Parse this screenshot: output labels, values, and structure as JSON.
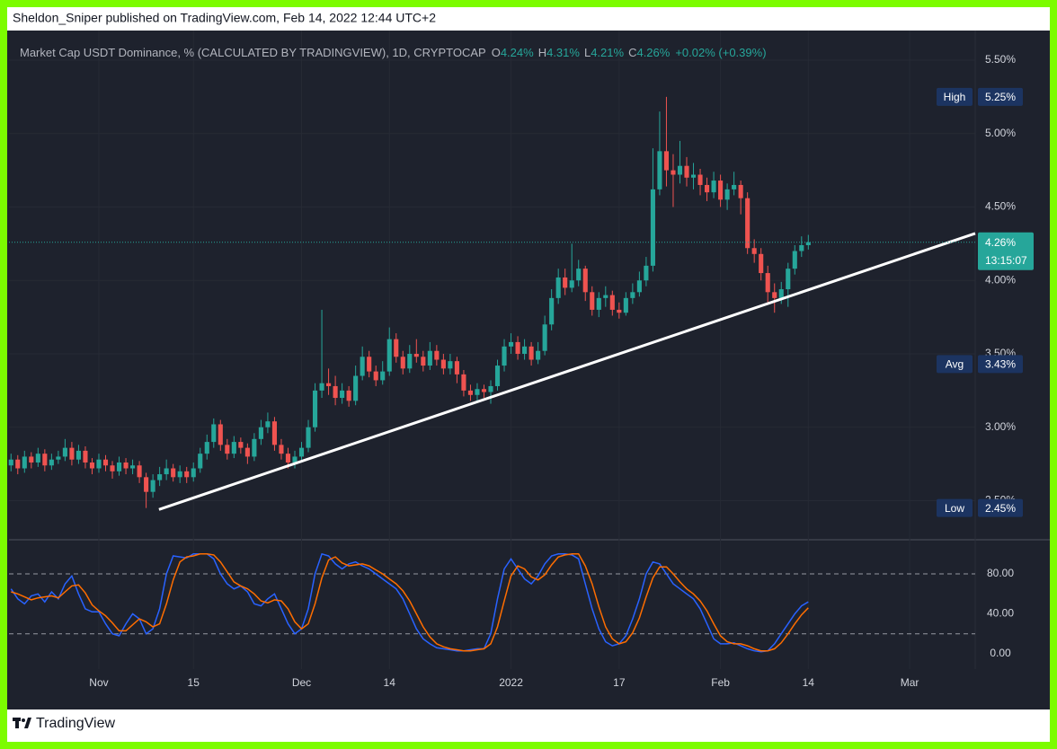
{
  "header": {
    "publisher_line": "Sheldon_Sniper published on TradingView.com, Feb 14, 2022 12:44 UTC+2"
  },
  "footer": {
    "brand": "TradingView"
  },
  "chart_data": [
    {
      "type": "candlestick",
      "title": "Market Cap USDT Dominance, % (CALCULATED BY TRADINGVIEW), 1D, CRYPTOCAP",
      "legend_ohlc": [
        {
          "key": "O",
          "value": "4.24%"
        },
        {
          "key": "H",
          "value": "4.31%"
        },
        {
          "key": "L",
          "value": "4.21%"
        },
        {
          "key": "C",
          "value": "4.26%"
        }
      ],
      "change_label": "+0.02% (+0.39%)",
      "up_color": "#26a69a",
      "down_color": "#ef5350",
      "grid": true,
      "xlim": [
        -13.3,
        129.7
      ],
      "ylim": [
        2.24,
        5.665
      ],
      "yticks": [
        {
          "value": 5.5,
          "label": "5.50%"
        },
        {
          "value": 5.0,
          "label": "5.00%"
        },
        {
          "value": 4.5,
          "label": "4.50%"
        },
        {
          "value": 4.0,
          "label": "4.00%"
        },
        {
          "value": 3.5,
          "label": "3.50%"
        },
        {
          "value": 3.0,
          "label": "3.00%"
        },
        {
          "value": 2.5,
          "label": "2.50%"
        }
      ],
      "x": [
        -13,
        -12,
        -11,
        -10,
        -9,
        -8,
        -7,
        -6,
        -5,
        -4,
        -3,
        -2,
        -1,
        0,
        1,
        2,
        3,
        4,
        5,
        6,
        7,
        8,
        9,
        10,
        11,
        12,
        13,
        14,
        15,
        16,
        17,
        18,
        19,
        20,
        21,
        22,
        23,
        24,
        25,
        26,
        27,
        28,
        29,
        30,
        31,
        32,
        33,
        34,
        35,
        36,
        37,
        38,
        39,
        40,
        41,
        42,
        43,
        44,
        45,
        46,
        47,
        48,
        49,
        50,
        51,
        52,
        53,
        54,
        55,
        56,
        57,
        58,
        59,
        60,
        61,
        62,
        63,
        64,
        65,
        66,
        67,
        68,
        69,
        70,
        71,
        72,
        73,
        74,
        75,
        76,
        77,
        78,
        79,
        80,
        81,
        82,
        83,
        84,
        85,
        86,
        87,
        88,
        89,
        90,
        91,
        92,
        93,
        94,
        95,
        96,
        97,
        98,
        99,
        100,
        101,
        102,
        103,
        104,
        105
      ],
      "open": [
        2.74,
        2.78,
        2.72,
        2.8,
        2.76,
        2.82,
        2.74,
        2.78,
        2.8,
        2.86,
        2.78,
        2.84,
        2.76,
        2.72,
        2.78,
        2.74,
        2.7,
        2.76,
        2.72,
        2.74,
        2.66,
        2.56,
        2.64,
        2.68,
        2.72,
        2.66,
        2.7,
        2.66,
        2.72,
        2.82,
        2.9,
        3.02,
        2.88,
        2.82,
        2.9,
        2.86,
        2.8,
        2.92,
        3.0,
        3.04,
        2.88,
        2.82,
        2.76,
        2.8,
        2.86,
        3.0,
        3.25,
        3.3,
        3.28,
        3.2,
        3.25,
        3.18,
        3.35,
        3.48,
        3.38,
        3.32,
        3.38,
        3.6,
        3.48,
        3.4,
        3.5,
        3.48,
        3.42,
        3.52,
        3.46,
        3.4,
        3.45,
        3.36,
        3.25,
        3.22,
        3.26,
        3.24,
        3.28,
        3.42,
        3.55,
        3.58,
        3.5,
        3.55,
        3.46,
        3.52,
        3.7,
        3.88,
        4.02,
        3.95,
        4.0,
        4.08,
        3.92,
        3.8,
        3.88,
        3.9,
        3.8,
        3.78,
        3.88,
        3.92,
        4.0,
        4.1,
        4.62,
        4.88,
        4.75,
        4.72,
        4.78,
        4.7,
        4.72,
        4.65,
        4.6,
        4.68,
        4.55,
        4.62,
        4.65,
        4.56,
        4.22,
        4.18,
        4.05,
        3.92,
        3.88,
        3.94,
        4.08,
        4.2,
        4.24
      ],
      "high": [
        2.82,
        2.81,
        2.84,
        2.83,
        2.86,
        2.85,
        2.82,
        2.84,
        2.92,
        2.9,
        2.88,
        2.87,
        2.79,
        2.82,
        2.81,
        2.77,
        2.8,
        2.79,
        2.78,
        2.77,
        2.69,
        2.68,
        2.73,
        2.78,
        2.75,
        2.74,
        2.73,
        2.76,
        2.86,
        2.95,
        3.06,
        3.05,
        2.92,
        2.94,
        2.93,
        2.89,
        2.96,
        3.05,
        3.1,
        3.07,
        2.92,
        2.86,
        2.84,
        2.9,
        3.05,
        3.3,
        3.8,
        3.4,
        3.35,
        3.3,
        3.28,
        3.42,
        3.55,
        3.52,
        3.42,
        3.45,
        3.68,
        3.64,
        3.52,
        3.56,
        3.6,
        3.52,
        3.58,
        3.56,
        3.5,
        3.5,
        3.48,
        3.39,
        3.29,
        3.3,
        3.29,
        3.32,
        3.46,
        3.6,
        3.64,
        3.62,
        3.6,
        3.58,
        3.58,
        3.76,
        3.94,
        4.08,
        4.08,
        4.25,
        4.14,
        4.1,
        3.96,
        3.92,
        3.96,
        3.93,
        3.85,
        3.92,
        3.98,
        4.06,
        4.16,
        4.9,
        5.15,
        5.25,
        4.86,
        4.95,
        4.84,
        4.8,
        4.76,
        4.7,
        4.74,
        4.72,
        4.66,
        4.74,
        4.68,
        4.6,
        4.28,
        4.22,
        4.1,
        3.98,
        3.99,
        4.12,
        4.24,
        4.3,
        4.31
      ],
      "low": [
        2.7,
        2.68,
        2.69,
        2.72,
        2.73,
        2.7,
        2.71,
        2.75,
        2.77,
        2.74,
        2.75,
        2.72,
        2.68,
        2.69,
        2.7,
        2.65,
        2.67,
        2.68,
        2.68,
        2.62,
        2.45,
        2.52,
        2.6,
        2.64,
        2.63,
        2.62,
        2.62,
        2.63,
        2.69,
        2.78,
        2.86,
        2.84,
        2.78,
        2.79,
        2.82,
        2.75,
        2.77,
        2.88,
        2.96,
        2.84,
        2.78,
        2.72,
        2.72,
        2.77,
        2.83,
        2.97,
        3.2,
        3.22,
        3.15,
        3.16,
        3.14,
        3.15,
        3.32,
        3.34,
        3.28,
        3.29,
        3.35,
        3.44,
        3.36,
        3.37,
        3.44,
        3.38,
        3.39,
        3.42,
        3.36,
        3.36,
        3.3,
        3.21,
        3.18,
        3.18,
        3.2,
        3.16,
        3.25,
        3.38,
        3.5,
        3.46,
        3.46,
        3.42,
        3.43,
        3.49,
        3.66,
        3.84,
        3.9,
        3.92,
        3.96,
        3.86,
        3.76,
        3.75,
        3.82,
        3.76,
        3.74,
        3.76,
        3.84,
        3.89,
        3.96,
        4.06,
        4.58,
        4.64,
        4.5,
        4.66,
        4.64,
        4.62,
        4.58,
        4.54,
        4.56,
        4.5,
        4.48,
        4.58,
        4.45,
        4.18,
        4.12,
        4.0,
        3.84,
        3.78,
        3.84,
        3.82,
        4.04,
        4.16,
        4.21
      ],
      "close": [
        2.78,
        2.72,
        2.8,
        2.76,
        2.82,
        2.74,
        2.78,
        2.8,
        2.86,
        2.78,
        2.84,
        2.76,
        2.72,
        2.78,
        2.74,
        2.7,
        2.76,
        2.72,
        2.74,
        2.66,
        2.56,
        2.64,
        2.68,
        2.72,
        2.66,
        2.7,
        2.66,
        2.72,
        2.82,
        2.9,
        3.02,
        2.88,
        2.82,
        2.9,
        2.86,
        2.8,
        2.92,
        3.0,
        3.04,
        2.88,
        2.82,
        2.76,
        2.8,
        2.86,
        3.0,
        3.25,
        3.3,
        3.28,
        3.2,
        3.25,
        3.18,
        3.35,
        3.48,
        3.38,
        3.32,
        3.38,
        3.6,
        3.48,
        3.4,
        3.5,
        3.48,
        3.42,
        3.52,
        3.46,
        3.4,
        3.45,
        3.36,
        3.25,
        3.22,
        3.26,
        3.24,
        3.28,
        3.42,
        3.55,
        3.58,
        3.5,
        3.55,
        3.46,
        3.52,
        3.7,
        3.88,
        4.02,
        3.95,
        4.0,
        4.08,
        3.92,
        3.8,
        3.88,
        3.9,
        3.8,
        3.78,
        3.88,
        3.92,
        4.0,
        4.1,
        4.62,
        4.88,
        4.75,
        4.72,
        4.78,
        4.7,
        4.72,
        4.65,
        4.6,
        4.68,
        4.55,
        4.62,
        4.65,
        4.56,
        4.22,
        4.18,
        4.05,
        3.92,
        3.88,
        3.94,
        4.08,
        4.2,
        4.24,
        4.26
      ],
      "price_markers": [
        {
          "name": "High",
          "value": 5.25,
          "value_label": "5.25%"
        },
        {
          "name": "Avg",
          "value": 3.43,
          "value_label": "3.43%"
        },
        {
          "name": "Low",
          "value": 2.45,
          "value_label": "2.45%"
        }
      ],
      "last_price": {
        "value": 4.26,
        "value_label": "4.26%",
        "countdown": "13:15:07",
        "color": "#26a69a"
      },
      "trendline": {
        "x": [
          8.9,
          129.7
        ],
        "values": [
          2.44,
          4.32
        ],
        "color": "#ffffff"
      }
    },
    {
      "type": "line",
      "grid": true,
      "xlim": [
        -13.3,
        129.7
      ],
      "ylim": [
        -15.3,
        112.4
      ],
      "yticks": [
        {
          "value": 80,
          "label": "80.00"
        },
        {
          "value": 40,
          "label": "40.00"
        },
        {
          "value": 0,
          "label": "0.00"
        }
      ],
      "hlines": [
        80,
        20
      ],
      "xticks": [
        {
          "value": 0,
          "label": "Nov"
        },
        {
          "value": 14,
          "label": "15"
        },
        {
          "value": 30,
          "label": "Dec"
        },
        {
          "value": 43,
          "label": "14"
        },
        {
          "value": 61,
          "label": "2022"
        },
        {
          "value": 77,
          "label": "17"
        },
        {
          "value": 92,
          "label": "Feb"
        },
        {
          "value": 105,
          "label": "14"
        },
        {
          "value": 120,
          "label": "Mar"
        }
      ],
      "x": [
        -13,
        -12,
        -11,
        -10,
        -9,
        -8,
        -7,
        -6,
        -5,
        -4,
        -3,
        -2,
        -1,
        0,
        1,
        2,
        3,
        4,
        5,
        6,
        7,
        8,
        9,
        10,
        11,
        12,
        13,
        14,
        15,
        16,
        17,
        18,
        19,
        20,
        21,
        22,
        23,
        24,
        25,
        26,
        27,
        28,
        29,
        30,
        31,
        32,
        33,
        34,
        35,
        36,
        37,
        38,
        39,
        40,
        41,
        42,
        43,
        44,
        45,
        46,
        47,
        48,
        49,
        50,
        51,
        52,
        53,
        54,
        55,
        56,
        57,
        58,
        59,
        60,
        61,
        62,
        63,
        64,
        65,
        66,
        67,
        68,
        69,
        70,
        71,
        72,
        73,
        74,
        75,
        76,
        77,
        78,
        79,
        80,
        81,
        82,
        83,
        84,
        85,
        86,
        87,
        88,
        89,
        90,
        91,
        92,
        93,
        94,
        95,
        96,
        97,
        98,
        99,
        100,
        101,
        102,
        103,
        104,
        105
      ],
      "series": [
        {
          "color": "#2962ff",
          "values": [
            65,
            55,
            50,
            58,
            60,
            52,
            62,
            55,
            70,
            78,
            60,
            45,
            42,
            42,
            30,
            20,
            18,
            30,
            40,
            35,
            20,
            25,
            45,
            80,
            98,
            97,
            96,
            100,
            100,
            100,
            95,
            80,
            70,
            65,
            68,
            62,
            50,
            48,
            55,
            60,
            45,
            30,
            20,
            25,
            45,
            80,
            100,
            98,
            90,
            85,
            90,
            92,
            88,
            85,
            80,
            75,
            70,
            65,
            55,
            40,
            25,
            15,
            10,
            6,
            5,
            4,
            3,
            3,
            4,
            5,
            5,
            20,
            55,
            85,
            95,
            85,
            75,
            70,
            78,
            90,
            98,
            100,
            100,
            99,
            95,
            70,
            45,
            25,
            12,
            8,
            10,
            18,
            35,
            55,
            80,
            92,
            90,
            80,
            70,
            65,
            60,
            55,
            45,
            30,
            15,
            10,
            10,
            11,
            8,
            5,
            3,
            2,
            3,
            10,
            20,
            30,
            40,
            48,
            52
          ]
        },
        {
          "color": "#ff6d00",
          "values": [
            62,
            60,
            57,
            54,
            56,
            57,
            58,
            56,
            62,
            68,
            69,
            61,
            49,
            43,
            38,
            31,
            23,
            23,
            29,
            35,
            32,
            27,
            30,
            50,
            74,
            92,
            97,
            98,
            100,
            100,
            99,
            92,
            82,
            72,
            68,
            65,
            60,
            53,
            51,
            54,
            53,
            45,
            32,
            25,
            30,
            50,
            76,
            94,
            97,
            91,
            88,
            89,
            90,
            88,
            84,
            80,
            75,
            70,
            63,
            53,
            40,
            27,
            17,
            10,
            7,
            5,
            4,
            3,
            3,
            4,
            5,
            10,
            27,
            53,
            78,
            88,
            85,
            77,
            74,
            79,
            89,
            97,
            99,
            100,
            100,
            88,
            70,
            47,
            27,
            15,
            10,
            12,
            21,
            36,
            57,
            76,
            87,
            87,
            80,
            72,
            65,
            60,
            53,
            43,
            30,
            18,
            12,
            10,
            10,
            8,
            5,
            3,
            3,
            5,
            11,
            20,
            30,
            39,
            46
          ]
        }
      ]
    }
  ]
}
